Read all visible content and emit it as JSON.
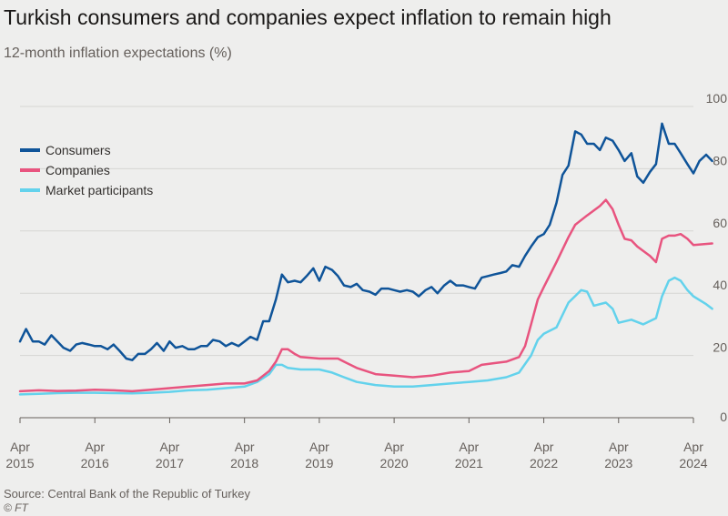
{
  "title": "Turkish consumers and companies expect inflation to remain high",
  "subtitle": "12-month inflation expectations (%)",
  "source": "Source: Central Bank of the Republic of Turkey",
  "copyright": "© FT",
  "chart_data": {
    "type": "line",
    "title": "Turkish consumers and companies expect inflation to remain high",
    "subtitle": "12-month inflation expectations (%)",
    "xlabel": "",
    "ylabel": "",
    "xlim": [
      2015.25,
      2024.25
    ],
    "ylim": [
      0,
      100
    ],
    "yticks": [
      "0",
      "20",
      "40",
      "60",
      "80",
      "100"
    ],
    "xticks": [
      {
        "month": "Apr",
        "year": "2015",
        "x": 2015.25
      },
      {
        "month": "Apr",
        "year": "2016",
        "x": 2016.25
      },
      {
        "month": "Apr",
        "year": "2017",
        "x": 2017.25
      },
      {
        "month": "Apr",
        "year": "2018",
        "x": 2018.25
      },
      {
        "month": "Apr",
        "year": "2019",
        "x": 2019.25
      },
      {
        "month": "Apr",
        "year": "2020",
        "x": 2020.25
      },
      {
        "month": "Apr",
        "year": "2021",
        "x": 2021.25
      },
      {
        "month": "Apr",
        "year": "2022",
        "x": 2022.25
      },
      {
        "month": "Apr",
        "year": "2023",
        "x": 2023.25
      },
      {
        "month": "Apr",
        "year": "2024",
        "x": 2024.25
      }
    ],
    "grid": "horizontal",
    "legend_position": "top-left",
    "series": [
      {
        "name": "Consumers",
        "color": "#0f5499",
        "points": [
          [
            2015.25,
            24.5
          ],
          [
            2015.33,
            28.5
          ],
          [
            2015.42,
            24.5
          ],
          [
            2015.5,
            24.5
          ],
          [
            2015.58,
            23.5
          ],
          [
            2015.67,
            26.5
          ],
          [
            2015.75,
            24.5
          ],
          [
            2015.83,
            22.5
          ],
          [
            2015.92,
            21.5
          ],
          [
            2016.0,
            23.5
          ],
          [
            2016.08,
            24.0
          ],
          [
            2016.17,
            23.5
          ],
          [
            2016.25,
            23.0
          ],
          [
            2016.33,
            23.0
          ],
          [
            2016.42,
            22.0
          ],
          [
            2016.5,
            23.5
          ],
          [
            2016.58,
            21.5
          ],
          [
            2016.67,
            19.0
          ],
          [
            2016.75,
            18.5
          ],
          [
            2016.83,
            20.5
          ],
          [
            2016.92,
            20.5
          ],
          [
            2017.0,
            22.0
          ],
          [
            2017.08,
            24.0
          ],
          [
            2017.17,
            21.5
          ],
          [
            2017.25,
            24.5
          ],
          [
            2017.33,
            22.5
          ],
          [
            2017.42,
            23.0
          ],
          [
            2017.5,
            22.0
          ],
          [
            2017.58,
            22.0
          ],
          [
            2017.67,
            23.0
          ],
          [
            2017.75,
            23.0
          ],
          [
            2017.83,
            25.0
          ],
          [
            2017.92,
            24.5
          ],
          [
            2018.0,
            23.0
          ],
          [
            2018.08,
            24.0
          ],
          [
            2018.17,
            23.0
          ],
          [
            2018.25,
            24.5
          ],
          [
            2018.33,
            26.0
          ],
          [
            2018.42,
            25.0
          ],
          [
            2018.5,
            31.0
          ],
          [
            2018.58,
            31.0
          ],
          [
            2018.67,
            38.0
          ],
          [
            2018.75,
            46.0
          ],
          [
            2018.83,
            43.5
          ],
          [
            2018.92,
            44.0
          ],
          [
            2019.0,
            43.5
          ],
          [
            2019.08,
            45.5
          ],
          [
            2019.17,
            48.0
          ],
          [
            2019.25,
            44.0
          ],
          [
            2019.33,
            48.5
          ],
          [
            2019.42,
            47.5
          ],
          [
            2019.5,
            45.5
          ],
          [
            2019.58,
            42.5
          ],
          [
            2019.67,
            42.0
          ],
          [
            2019.75,
            43.0
          ],
          [
            2019.83,
            41.0
          ],
          [
            2019.92,
            40.5
          ],
          [
            2020.0,
            39.5
          ],
          [
            2020.08,
            41.5
          ],
          [
            2020.17,
            41.5
          ],
          [
            2020.25,
            41.0
          ],
          [
            2020.33,
            40.5
          ],
          [
            2020.42,
            41.0
          ],
          [
            2020.5,
            40.5
          ],
          [
            2020.58,
            39.0
          ],
          [
            2020.67,
            41.0
          ],
          [
            2020.75,
            42.0
          ],
          [
            2020.83,
            40.0
          ],
          [
            2020.92,
            42.5
          ],
          [
            2021.0,
            44.0
          ],
          [
            2021.08,
            42.5
          ],
          [
            2021.17,
            42.5
          ],
          [
            2021.25,
            42.0
          ],
          [
            2021.33,
            41.5
          ],
          [
            2021.42,
            45.0
          ],
          [
            2021.5,
            45.5
          ],
          [
            2021.58,
            46.0
          ],
          [
            2021.67,
            46.5
          ],
          [
            2021.75,
            47.0
          ],
          [
            2021.83,
            49.0
          ],
          [
            2021.92,
            48.5
          ],
          [
            2022.0,
            52.0
          ],
          [
            2022.08,
            55.0
          ],
          [
            2022.17,
            58.0
          ],
          [
            2022.25,
            59.0
          ],
          [
            2022.33,
            62.0
          ],
          [
            2022.42,
            69.0
          ],
          [
            2022.5,
            78.0
          ],
          [
            2022.58,
            81.0
          ],
          [
            2022.67,
            92.0
          ],
          [
            2022.75,
            91.0
          ],
          [
            2022.83,
            88.0
          ],
          [
            2022.92,
            88.0
          ],
          [
            2023.0,
            86.0
          ],
          [
            2023.08,
            90.0
          ],
          [
            2023.17,
            89.0
          ],
          [
            2023.25,
            86.0
          ],
          [
            2023.33,
            82.5
          ],
          [
            2023.42,
            85.0
          ],
          [
            2023.5,
            77.5
          ],
          [
            2023.58,
            75.5
          ],
          [
            2023.67,
            79.0
          ],
          [
            2023.75,
            81.5
          ],
          [
            2023.83,
            94.5
          ],
          [
            2023.92,
            88.0
          ],
          [
            2024.0,
            88.0
          ],
          [
            2024.08,
            85.0
          ],
          [
            2024.17,
            81.5
          ],
          [
            2024.25,
            78.5
          ],
          [
            2024.33,
            82.5
          ],
          [
            2024.42,
            84.5
          ],
          [
            2024.5,
            82.5
          ]
        ]
      },
      {
        "name": "Companies",
        "color": "#e8547f",
        "points": [
          [
            2015.25,
            8.5
          ],
          [
            2015.5,
            8.8
          ],
          [
            2015.75,
            8.6
          ],
          [
            2016.0,
            8.7
          ],
          [
            2016.25,
            9.0
          ],
          [
            2016.5,
            8.8
          ],
          [
            2016.75,
            8.5
          ],
          [
            2017.0,
            9.0
          ],
          [
            2017.25,
            9.5
          ],
          [
            2017.5,
            10.0
          ],
          [
            2017.75,
            10.5
          ],
          [
            2018.0,
            11.0
          ],
          [
            2018.25,
            11.0
          ],
          [
            2018.42,
            12.0
          ],
          [
            2018.58,
            15.0
          ],
          [
            2018.67,
            18.0
          ],
          [
            2018.75,
            22.0
          ],
          [
            2018.83,
            22.0
          ],
          [
            2018.92,
            20.5
          ],
          [
            2019.0,
            19.5
          ],
          [
            2019.25,
            19.0
          ],
          [
            2019.5,
            19.0
          ],
          [
            2019.58,
            18.0
          ],
          [
            2019.75,
            16.0
          ],
          [
            2020.0,
            14.0
          ],
          [
            2020.25,
            13.5
          ],
          [
            2020.5,
            13.0
          ],
          [
            2020.75,
            13.5
          ],
          [
            2021.0,
            14.5
          ],
          [
            2021.25,
            15.0
          ],
          [
            2021.42,
            17.0
          ],
          [
            2021.58,
            17.5
          ],
          [
            2021.75,
            18.0
          ],
          [
            2021.92,
            19.5
          ],
          [
            2022.0,
            23.0
          ],
          [
            2022.08,
            30.0
          ],
          [
            2022.17,
            38.0
          ],
          [
            2022.25,
            42.0
          ],
          [
            2022.42,
            50.0
          ],
          [
            2022.58,
            58.0
          ],
          [
            2022.67,
            62.0
          ],
          [
            2022.83,
            65.0
          ],
          [
            2023.0,
            68.0
          ],
          [
            2023.08,
            70.0
          ],
          [
            2023.17,
            67.0
          ],
          [
            2023.25,
            62.0
          ],
          [
            2023.33,
            57.5
          ],
          [
            2023.42,
            57.0
          ],
          [
            2023.5,
            55.0
          ],
          [
            2023.67,
            52.0
          ],
          [
            2023.75,
            50.0
          ],
          [
            2023.83,
            57.5
          ],
          [
            2023.92,
            58.5
          ],
          [
            2024.0,
            58.5
          ],
          [
            2024.08,
            59.0
          ],
          [
            2024.17,
            57.5
          ],
          [
            2024.25,
            55.5
          ],
          [
            2024.5,
            56.0
          ]
        ]
      },
      {
        "name": "Market participants",
        "color": "#63d2ec",
        "points": [
          [
            2015.25,
            7.5
          ],
          [
            2015.5,
            7.7
          ],
          [
            2015.75,
            7.9
          ],
          [
            2016.0,
            8.0
          ],
          [
            2016.25,
            8.0
          ],
          [
            2016.5,
            7.9
          ],
          [
            2016.75,
            7.8
          ],
          [
            2017.0,
            8.0
          ],
          [
            2017.25,
            8.3
          ],
          [
            2017.5,
            8.8
          ],
          [
            2017.75,
            9.0
          ],
          [
            2018.0,
            9.5
          ],
          [
            2018.25,
            10.0
          ],
          [
            2018.42,
            11.5
          ],
          [
            2018.58,
            14.0
          ],
          [
            2018.67,
            17.0
          ],
          [
            2018.75,
            17.0
          ],
          [
            2018.83,
            16.0
          ],
          [
            2019.0,
            15.5
          ],
          [
            2019.25,
            15.5
          ],
          [
            2019.42,
            14.5
          ],
          [
            2019.58,
            13.0
          ],
          [
            2019.75,
            11.5
          ],
          [
            2020.0,
            10.5
          ],
          [
            2020.25,
            10.0
          ],
          [
            2020.5,
            10.0
          ],
          [
            2020.75,
            10.5
          ],
          [
            2021.0,
            11.0
          ],
          [
            2021.25,
            11.5
          ],
          [
            2021.5,
            12.0
          ],
          [
            2021.75,
            13.0
          ],
          [
            2021.92,
            14.5
          ],
          [
            2022.08,
            20.0
          ],
          [
            2022.17,
            25.0
          ],
          [
            2022.25,
            27.0
          ],
          [
            2022.42,
            29.0
          ],
          [
            2022.58,
            37.0
          ],
          [
            2022.75,
            41.0
          ],
          [
            2022.83,
            40.5
          ],
          [
            2022.92,
            36.0
          ],
          [
            2023.08,
            37.0
          ],
          [
            2023.17,
            35.0
          ],
          [
            2023.25,
            30.5
          ],
          [
            2023.42,
            31.5
          ],
          [
            2023.58,
            30.0
          ],
          [
            2023.75,
            32.0
          ],
          [
            2023.83,
            39.0
          ],
          [
            2023.92,
            44.0
          ],
          [
            2024.0,
            45.0
          ],
          [
            2024.08,
            44.0
          ],
          [
            2024.17,
            41.0
          ],
          [
            2024.25,
            39.0
          ],
          [
            2024.42,
            36.5
          ],
          [
            2024.5,
            35.0
          ]
        ]
      }
    ]
  }
}
